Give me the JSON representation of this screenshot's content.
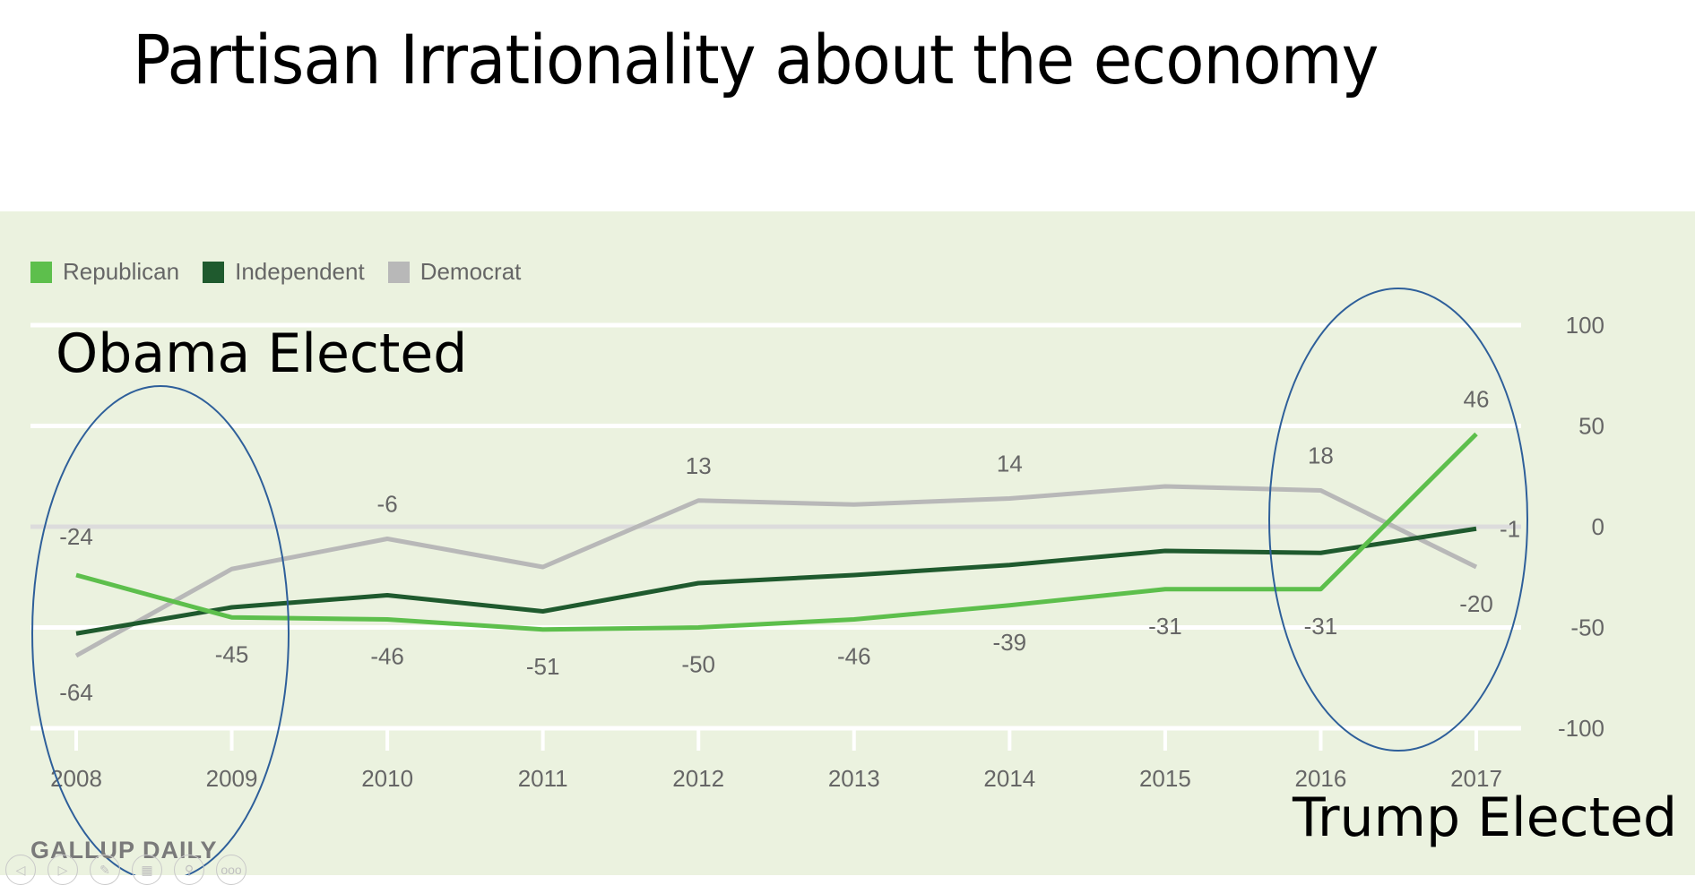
{
  "slide": {
    "title": "Partisan Irrationality about the economy",
    "annotations": {
      "obama": "Obama Elected",
      "trump": "Trump Elected"
    },
    "source": "GALLUP DAILY",
    "toolbar": [
      {
        "icon": "previous-icon",
        "glyph": "◁"
      },
      {
        "icon": "next-icon",
        "glyph": "▷"
      },
      {
        "icon": "pen-icon",
        "glyph": "✎"
      },
      {
        "icon": "slides-grid-icon",
        "glyph": "▦"
      },
      {
        "icon": "zoom-icon",
        "glyph": "⚲"
      },
      {
        "icon": "more-icon",
        "glyph": "ooo"
      }
    ],
    "colors": {
      "panel_bg": "#ebf2df",
      "republican": "#5dbf4c",
      "independent": "#1f5a2e",
      "democrat": "#b8b8b8",
      "ellipse": "#2e5f9a"
    }
  },
  "chart_data": {
    "type": "line",
    "title": "",
    "xlabel": "",
    "ylabel": "",
    "x": [
      "2008",
      "2009",
      "2010",
      "2011",
      "2012",
      "2013",
      "2014",
      "2015",
      "2016",
      "2017"
    ],
    "yticks": [
      "100",
      "50",
      "0",
      "-50",
      "-100"
    ],
    "ytick_values": [
      100,
      50,
      0,
      -50,
      -100
    ],
    "ylim": [
      -100,
      100
    ],
    "y_axis_side": "right",
    "grid": true,
    "legend_position": "top-left",
    "series": [
      {
        "name": "Republican",
        "color": "#5dbf4c",
        "values": [
          -24,
          -45,
          -46,
          -51,
          -50,
          -46,
          -39,
          -31,
          -31,
          46
        ]
      },
      {
        "name": "Independent",
        "color": "#1f5a2e",
        "values": [
          -53,
          -40,
          -34,
          -42,
          -28,
          -24,
          -19,
          -12,
          -13,
          -1
        ]
      },
      {
        "name": "Democrat",
        "color": "#b8b8b8",
        "values": [
          -64,
          -21,
          -6,
          -20,
          13,
          11,
          14,
          20,
          18,
          -20
        ]
      }
    ],
    "data_labels": [
      {
        "series": "Democrat",
        "x": "2008",
        "text": "-64",
        "pos": "below"
      },
      {
        "series": "Republican",
        "x": "2008",
        "text": "-24",
        "pos": "above"
      },
      {
        "series": "Republican",
        "x": "2009",
        "text": "-45",
        "pos": "below"
      },
      {
        "series": "Democrat",
        "x": "2010",
        "text": "-6",
        "pos": "above"
      },
      {
        "series": "Republican",
        "x": "2010",
        "text": "-46",
        "pos": "below"
      },
      {
        "series": "Republican",
        "x": "2011",
        "text": "-51",
        "pos": "below"
      },
      {
        "series": "Democrat",
        "x": "2012",
        "text": "13",
        "pos": "above"
      },
      {
        "series": "Republican",
        "x": "2012",
        "text": "-50",
        "pos": "below"
      },
      {
        "series": "Republican",
        "x": "2013",
        "text": "-46",
        "pos": "below"
      },
      {
        "series": "Democrat",
        "x": "2014",
        "text": "14",
        "pos": "above"
      },
      {
        "series": "Republican",
        "x": "2014",
        "text": "-39",
        "pos": "below"
      },
      {
        "series": "Republican",
        "x": "2015",
        "text": "-31",
        "pos": "below"
      },
      {
        "series": "Democrat",
        "x": "2016",
        "text": "18",
        "pos": "above"
      },
      {
        "series": "Republican",
        "x": "2016",
        "text": "-31",
        "pos": "below"
      },
      {
        "series": "Republican",
        "x": "2017",
        "text": "46",
        "pos": "above"
      },
      {
        "series": "Independent",
        "x": "2017",
        "text": "-1",
        "pos": "right"
      },
      {
        "series": "Democrat",
        "x": "2017",
        "text": "-20",
        "pos": "below"
      }
    ],
    "highlights": [
      {
        "label": "Obama Elected",
        "x_range": [
          "2008",
          "2009"
        ]
      },
      {
        "label": "Trump Elected",
        "x_range": [
          "2016",
          "2017"
        ]
      }
    ]
  }
}
